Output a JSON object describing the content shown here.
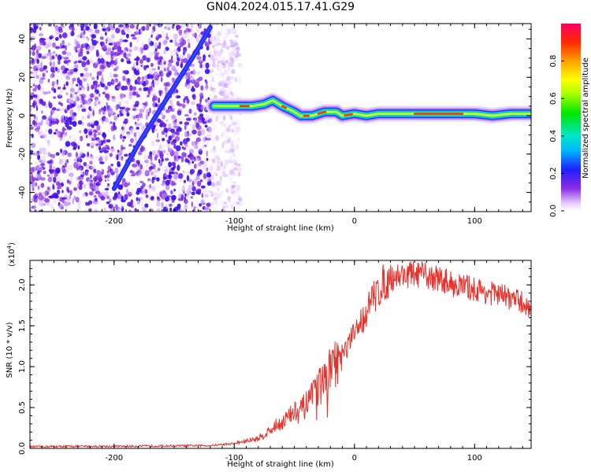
{
  "title": "GN04.2024.015.17.41.G29",
  "chart_data": [
    {
      "type": "heatmap",
      "xlabel": "Height of straight line (km)",
      "ylabel": "Frequency (Hz)",
      "xlim": [
        -270,
        147
      ],
      "ylim": [
        -50,
        48
      ],
      "xticks": [
        -200,
        -100,
        0,
        100
      ],
      "yticks": [
        -40,
        -20,
        0,
        20,
        40
      ],
      "colorbar": {
        "label": "Normalized spectral amplitude",
        "range": [
          0,
          1
        ],
        "ticks": [
          "0.0",
          "0.2",
          "0.4",
          "0.6",
          "0.8"
        ]
      },
      "ridge": {
        "description_points": [
          [
            -200,
            -38
          ],
          [
            -180,
            -15
          ],
          [
            -165,
            0
          ],
          [
            -150,
            15
          ],
          [
            -130,
            35
          ],
          [
            -120,
            46
          ]
        ],
        "flat": [
          [
            -117,
            5
          ],
          [
            -100,
            5
          ],
          [
            -85,
            5
          ],
          [
            -75,
            6
          ],
          [
            -68,
            8
          ],
          [
            -60,
            5
          ],
          [
            -50,
            2
          ],
          [
            -45,
            0
          ],
          [
            -35,
            0
          ],
          [
            -25,
            2
          ],
          [
            -15,
            2
          ],
          [
            -10,
            0
          ],
          [
            0,
            1
          ],
          [
            10,
            0
          ],
          [
            20,
            1
          ],
          [
            40,
            1
          ],
          [
            60,
            1
          ],
          [
            80,
            1
          ],
          [
            100,
            1
          ],
          [
            115,
            0
          ],
          [
            130,
            1
          ],
          [
            147,
            1
          ]
        ]
      }
    },
    {
      "type": "line",
      "xlabel": "Height of straight line (km)",
      "ylabel": "SNR (10 * v/v)",
      "yscale_label": "(x10",
      "yscale_exp": "4",
      "yscale_close": ")",
      "xlim": [
        -270,
        147
      ],
      "ylim": [
        0,
        23000
      ],
      "xticks": [
        -200,
        -100,
        0,
        100
      ],
      "yticks": [
        0,
        5000,
        10000,
        15000,
        20000
      ],
      "ytick_labels": [
        "0.0",
        "0.5",
        "1.0",
        "1.5",
        "2.0"
      ],
      "color": "#e8312a",
      "series": [
        {
          "x": [
            -270,
            -240,
            -200,
            -160,
            -120,
            -100,
            -90,
            -80,
            -75,
            -70,
            -65,
            -60,
            -55,
            -50,
            -45,
            -40,
            -35,
            -30,
            -25,
            -20,
            -15,
            -10,
            -5,
            0,
            5,
            10,
            15,
            20,
            25,
            30,
            40,
            50,
            60,
            70,
            80,
            90,
            100,
            110,
            120,
            130,
            140,
            147
          ],
          "values": [
            200,
            250,
            250,
            300,
            350,
            600,
            900,
            1200,
            1700,
            2200,
            2800,
            3300,
            3800,
            4400,
            4700,
            5300,
            6200,
            7300,
            8400,
            9400,
            10400,
            11400,
            12600,
            14000,
            15400,
            16700,
            18200,
            19400,
            20300,
            20900,
            21200,
            21300,
            21100,
            20800,
            20200,
            19800,
            19500,
            19100,
            18800,
            18400,
            17800,
            17000
          ]
        }
      ]
    }
  ]
}
